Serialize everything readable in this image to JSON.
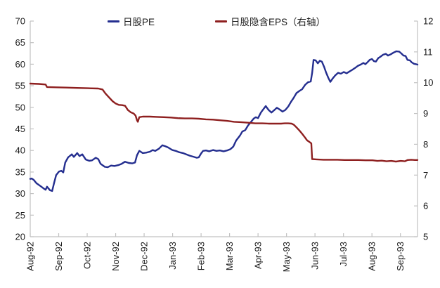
{
  "colors": {
    "background": "#FFFFFF",
    "axis": "#C2C2C2",
    "text": "#1A1A1A",
    "pe_line": "#242E8F",
    "eps_line": "#8E1F1F"
  },
  "chart_data": {
    "type": "line",
    "title": "",
    "xlabel": "",
    "ylabel_left": "",
    "ylabel_right": "",
    "grid": "off",
    "legend_position": "top-center",
    "x_unit": "month index from Aug-1992 tick",
    "x_range": [
      0,
      13.6
    ],
    "x_tick_labels": [
      "Aug-92",
      "Sep-92",
      "Oct-92",
      "Nov-92",
      "Dec-92",
      "Jan-93",
      "Feb-93",
      "Mar-93",
      "Apr-93",
      "May-93",
      "Jun-93",
      "Jul-93",
      "Aug-93",
      "Sep-93"
    ],
    "left_axis": {
      "min": 20,
      "max": 70,
      "step": 5,
      "ticks": [
        70,
        65,
        60,
        55,
        50,
        45,
        40,
        35,
        30,
        25,
        20
      ]
    },
    "right_axis": {
      "min": 5,
      "max": 12,
      "step": 1,
      "ticks": [
        12,
        11,
        10,
        9,
        8,
        7,
        6,
        5
      ]
    },
    "series": [
      {
        "id": "pe",
        "name": "日股PE",
        "axis": "left",
        "color": "#242E8F",
        "points": [
          [
            0,
            33.4
          ],
          [
            0.05,
            33.5
          ],
          [
            0.12,
            33.2
          ],
          [
            0.22,
            32.4
          ],
          [
            0.37,
            31.7
          ],
          [
            0.47,
            31.2
          ],
          [
            0.54,
            30.9
          ],
          [
            0.59,
            31.6
          ],
          [
            0.69,
            30.8
          ],
          [
            0.77,
            30.6
          ],
          [
            0.84,
            32.5
          ],
          [
            0.91,
            34.3
          ],
          [
            1.01,
            35.1
          ],
          [
            1.09,
            35.3
          ],
          [
            1.16,
            34.9
          ],
          [
            1.23,
            37.2
          ],
          [
            1.33,
            38.4
          ],
          [
            1.46,
            39.1
          ],
          [
            1.53,
            38.5
          ],
          [
            1.65,
            39.4
          ],
          [
            1.73,
            38.7
          ],
          [
            1.83,
            39.1
          ],
          [
            1.95,
            37.9
          ],
          [
            2.07,
            37.6
          ],
          [
            2.17,
            37.7
          ],
          [
            2.3,
            38.3
          ],
          [
            2.39,
            38
          ],
          [
            2.47,
            36.9
          ],
          [
            2.62,
            36.2
          ],
          [
            2.72,
            36.1
          ],
          [
            2.84,
            36.5
          ],
          [
            2.96,
            36.4
          ],
          [
            3.09,
            36.6
          ],
          [
            3.21,
            36.9
          ],
          [
            3.33,
            37.4
          ],
          [
            3.46,
            37.1
          ],
          [
            3.58,
            37
          ],
          [
            3.68,
            37.2
          ],
          [
            3.75,
            38.9
          ],
          [
            3.83,
            39.9
          ],
          [
            3.95,
            39.4
          ],
          [
            4.07,
            39.5
          ],
          [
            4.2,
            39.7
          ],
          [
            4.3,
            40.1
          ],
          [
            4.39,
            39.9
          ],
          [
            4.52,
            40.4
          ],
          [
            4.64,
            41.2
          ],
          [
            4.74,
            41
          ],
          [
            4.84,
            40.7
          ],
          [
            4.99,
            40.1
          ],
          [
            5.11,
            39.9
          ],
          [
            5.23,
            39.6
          ],
          [
            5.36,
            39.4
          ],
          [
            5.48,
            39.1
          ],
          [
            5.6,
            38.8
          ],
          [
            5.75,
            38.5
          ],
          [
            5.85,
            38.3
          ],
          [
            5.92,
            38.4
          ],
          [
            6,
            39.3
          ],
          [
            6.07,
            39.9
          ],
          [
            6.17,
            40
          ],
          [
            6.29,
            39.8
          ],
          [
            6.42,
            40.1
          ],
          [
            6.54,
            39.9
          ],
          [
            6.66,
            40
          ],
          [
            6.79,
            39.8
          ],
          [
            6.91,
            40
          ],
          [
            7.03,
            40.3
          ],
          [
            7.13,
            40.9
          ],
          [
            7.23,
            42.3
          ],
          [
            7.36,
            43.4
          ],
          [
            7.45,
            44.4
          ],
          [
            7.55,
            44.7
          ],
          [
            7.65,
            45.8
          ],
          [
            7.75,
            46.6
          ],
          [
            7.85,
            47.4
          ],
          [
            7.92,
            47.7
          ],
          [
            8,
            47.5
          ],
          [
            8.1,
            48.8
          ],
          [
            8.19,
            49.6
          ],
          [
            8.27,
            50.3
          ],
          [
            8.37,
            49.4
          ],
          [
            8.47,
            48.8
          ],
          [
            8.56,
            49.3
          ],
          [
            8.66,
            49.9
          ],
          [
            8.76,
            49.5
          ],
          [
            8.86,
            49
          ],
          [
            8.96,
            49.4
          ],
          [
            9.06,
            50.2
          ],
          [
            9.16,
            51.3
          ],
          [
            9.25,
            52.2
          ],
          [
            9.35,
            53.3
          ],
          [
            9.45,
            53.8
          ],
          [
            9.55,
            54.2
          ],
          [
            9.65,
            55.2
          ],
          [
            9.75,
            55.8
          ],
          [
            9.85,
            56
          ],
          [
            9.9,
            58
          ],
          [
            9.95,
            61
          ],
          [
            10.02,
            60.9
          ],
          [
            10.1,
            60.2
          ],
          [
            10.17,
            60.8
          ],
          [
            10.24,
            60.6
          ],
          [
            10.32,
            59.4
          ],
          [
            10.39,
            58.1
          ],
          [
            10.47,
            56.8
          ],
          [
            10.54,
            55.9
          ],
          [
            10.61,
            56.6
          ],
          [
            10.71,
            57.4
          ],
          [
            10.81,
            58
          ],
          [
            10.91,
            57.8
          ],
          [
            11.01,
            58.2
          ],
          [
            11.11,
            57.9
          ],
          [
            11.21,
            58.3
          ],
          [
            11.31,
            58.7
          ],
          [
            11.4,
            59.1
          ],
          [
            11.5,
            59.6
          ],
          [
            11.6,
            59.9
          ],
          [
            11.7,
            60.3
          ],
          [
            11.77,
            60
          ],
          [
            11.85,
            60.5
          ],
          [
            11.92,
            61
          ],
          [
            12,
            61.2
          ],
          [
            12.07,
            60.7
          ],
          [
            12.14,
            60.6
          ],
          [
            12.22,
            61.4
          ],
          [
            12.29,
            61.7
          ],
          [
            12.39,
            62.2
          ],
          [
            12.49,
            62.4
          ],
          [
            12.56,
            62
          ],
          [
            12.66,
            62.3
          ],
          [
            12.76,
            62.7
          ],
          [
            12.86,
            63
          ],
          [
            12.96,
            62.9
          ],
          [
            13.03,
            62.5
          ],
          [
            13.11,
            62
          ],
          [
            13.18,
            61.9
          ],
          [
            13.25,
            61
          ],
          [
            13.33,
            60.9
          ],
          [
            13.4,
            60.4
          ],
          [
            13.48,
            60.1
          ],
          [
            13.55,
            60
          ],
          [
            13.6,
            59.9
          ]
        ]
      },
      {
        "id": "eps",
        "name": "日股隐含EPS（右轴）",
        "axis": "right",
        "color": "#8E1F1F",
        "points": [
          [
            0,
            9.97
          ],
          [
            0.3,
            9.96
          ],
          [
            0.54,
            9.94
          ],
          [
            0.59,
            9.86
          ],
          [
            0.91,
            9.85
          ],
          [
            1.28,
            9.84
          ],
          [
            1.65,
            9.83
          ],
          [
            2.02,
            9.82
          ],
          [
            2.39,
            9.81
          ],
          [
            2.54,
            9.78
          ],
          [
            2.64,
            9.65
          ],
          [
            2.76,
            9.53
          ],
          [
            2.89,
            9.4
          ],
          [
            2.99,
            9.33
          ],
          [
            3.11,
            9.28
          ],
          [
            3.23,
            9.27
          ],
          [
            3.33,
            9.25
          ],
          [
            3.43,
            9.11
          ],
          [
            3.53,
            9.04
          ],
          [
            3.63,
            9
          ],
          [
            3.7,
            8.93
          ],
          [
            3.75,
            8.78
          ],
          [
            3.78,
            8.73
          ],
          [
            3.83,
            8.88
          ],
          [
            3.95,
            8.9
          ],
          [
            4.2,
            8.9
          ],
          [
            4.44,
            8.89
          ],
          [
            4.69,
            8.88
          ],
          [
            4.94,
            8.87
          ],
          [
            5.18,
            8.85
          ],
          [
            5.43,
            8.84
          ],
          [
            5.68,
            8.84
          ],
          [
            5.92,
            8.83
          ],
          [
            6.17,
            8.81
          ],
          [
            6.42,
            8.8
          ],
          [
            6.66,
            8.78
          ],
          [
            6.91,
            8.76
          ],
          [
            7.16,
            8.73
          ],
          [
            7.4,
            8.72
          ],
          [
            7.65,
            8.7
          ],
          [
            7.9,
            8.68
          ],
          [
            8.15,
            8.68
          ],
          [
            8.39,
            8.67
          ],
          [
            8.64,
            8.67
          ],
          [
            8.81,
            8.67
          ],
          [
            8.94,
            8.68
          ],
          [
            9.06,
            8.68
          ],
          [
            9.18,
            8.67
          ],
          [
            9.25,
            8.64
          ],
          [
            9.35,
            8.55
          ],
          [
            9.45,
            8.45
          ],
          [
            9.55,
            8.34
          ],
          [
            9.65,
            8.22
          ],
          [
            9.72,
            8.13
          ],
          [
            9.8,
            8.08
          ],
          [
            9.87,
            8.03
          ],
          [
            9.9,
            7.52
          ],
          [
            10.05,
            7.51
          ],
          [
            10.3,
            7.5
          ],
          [
            10.54,
            7.5
          ],
          [
            10.79,
            7.5
          ],
          [
            11.04,
            7.49
          ],
          [
            11.28,
            7.49
          ],
          [
            11.53,
            7.49
          ],
          [
            11.77,
            7.48
          ],
          [
            12.02,
            7.48
          ],
          [
            12.19,
            7.46
          ],
          [
            12.34,
            7.47
          ],
          [
            12.51,
            7.45
          ],
          [
            12.68,
            7.46
          ],
          [
            12.84,
            7.44
          ],
          [
            13.01,
            7.46
          ],
          [
            13.16,
            7.45
          ],
          [
            13.25,
            7.49
          ],
          [
            13.38,
            7.5
          ],
          [
            13.51,
            7.49
          ],
          [
            13.6,
            7.49
          ]
        ]
      }
    ]
  }
}
